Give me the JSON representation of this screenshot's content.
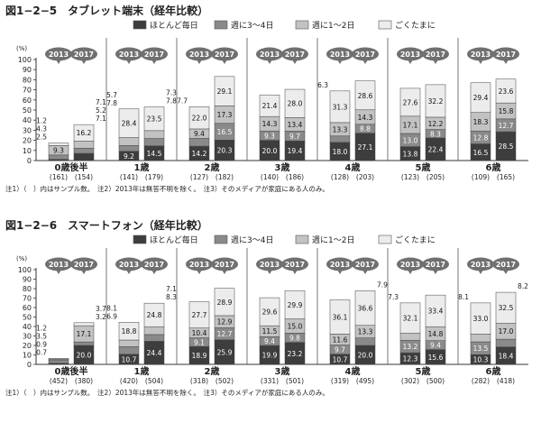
{
  "colors": {
    "s0": "#3d3d3d",
    "s1": "#8a8a8a",
    "s2": "#c2c2c2",
    "s3": "#ececec",
    "bubble": "#707070",
    "bubble_text": "#ffffff",
    "text": "#222222",
    "axis": "#333333"
  },
  "legend": [
    "ほとんど毎日",
    "週に3～4日",
    "週に1～2日",
    "ごくたまに"
  ],
  "years": [
    "2013",
    "2017"
  ],
  "axis_unit": "(%)",
  "chart_data": [
    {
      "type": "bar",
      "stacked": true,
      "title": "図1−2−5　タブレット端末（経年比較）",
      "ylim": [
        0,
        100
      ],
      "yticks": [
        0,
        10,
        20,
        30,
        40,
        50,
        60,
        70,
        80,
        90,
        100
      ],
      "categories": [
        "0歳後半",
        "1歳",
        "2歳",
        "3歳",
        "4歳",
        "5歳",
        "6歳"
      ],
      "samples": [
        [
          "(161)",
          "(154)"
        ],
        [
          "(141)",
          "(179)"
        ],
        [
          "(127)",
          "(182)"
        ],
        [
          "(140)",
          "(186)"
        ],
        [
          "(128)",
          "(203)"
        ],
        [
          "(123)",
          "(205)"
        ],
        [
          "(109)",
          "(165)"
        ]
      ],
      "series": [
        {
          "name": "ほとんど毎日",
          "values": [
            [
              1.2,
              7.1
            ],
            [
              9.2,
              14.5
            ],
            [
              14.2,
              20.3
            ],
            [
              20.0,
              19.4
            ],
            [
              18.0,
              27.1
            ],
            [
              13.8,
              22.4
            ],
            [
              16.5,
              28.5
            ]
          ]
        },
        {
          "name": "週に3～4日",
          "values": [
            [
              4.3,
              5.2
            ],
            [
              5.7,
              7.3
            ],
            [
              7.7,
              16.5
            ],
            [
              9.3,
              9.7
            ],
            [
              6.3,
              8.8
            ],
            [
              13.0,
              8.3
            ],
            [
              12.8,
              12.7
            ]
          ]
        },
        {
          "name": "週に1～2日",
          "values": [
            [
              9.3,
              7.1
            ],
            [
              7.8,
              7.8
            ],
            [
              9.4,
              17.3
            ],
            [
              14.3,
              13.4
            ],
            [
              13.3,
              14.3
            ],
            [
              17.1,
              12.2
            ],
            [
              18.3,
              15.8
            ]
          ]
        },
        {
          "name": "ごくたまに",
          "values": [
            [
              2.5,
              16.2
            ],
            [
              28.4,
              23.5
            ],
            [
              22.0,
              29.1
            ],
            [
              21.4,
              28.0
            ],
            [
              31.3,
              28.6
            ],
            [
              27.6,
              32.2
            ],
            [
              29.4,
              23.6
            ]
          ]
        }
      ],
      "note": "注1）（　）内はサンプル数。　注2）2013年は無答不明を除く。　注3）そのメディアが家庭にある人のみ。"
    },
    {
      "type": "bar",
      "stacked": true,
      "title": "図1−2−6　スマートフォン（経年比較）",
      "ylim": [
        0,
        100
      ],
      "yticks": [
        0,
        10,
        20,
        30,
        40,
        50,
        60,
        70,
        80,
        90,
        100
      ],
      "categories": [
        "0歳後半",
        "1歳",
        "2歳",
        "3歳",
        "4歳",
        "5歳",
        "6歳"
      ],
      "samples": [
        [
          "(452)",
          "(380)"
        ],
        [
          "(420)",
          "(504)"
        ],
        [
          "(318)",
          "(502)"
        ],
        [
          "(331)",
          "(501)"
        ],
        [
          "(319)",
          "(495)"
        ],
        [
          "(302)",
          "(500)"
        ],
        [
          "(282)",
          "(418)"
        ]
      ],
      "series": [
        {
          "name": "ほとんど毎日",
          "values": [
            [
              1.2,
              20.0
            ],
            [
              10.7,
              24.4
            ],
            [
              18.9,
              25.9
            ],
            [
              19.9,
              23.2
            ],
            [
              10.7,
              20.0
            ],
            [
              12.3,
              15.6
            ],
            [
              10.3,
              18.4
            ]
          ]
        },
        {
          "name": "週に3～4日",
          "values": [
            [
              3.5,
              3.7
            ],
            [
              8.1,
              7.1
            ],
            [
              9.1,
              12.7
            ],
            [
              9.4,
              9.8
            ],
            [
              9.7,
              7.9
            ],
            [
              13.2,
              9.4
            ],
            [
              13.5,
              8.2
            ]
          ]
        },
        {
          "name": "週に1～2日",
          "values": [
            [
              0.9,
              17.1
            ],
            [
              6.9,
              8.3
            ],
            [
              10.4,
              12.9
            ],
            [
              11.5,
              15.0
            ],
            [
              11.6,
              13.3
            ],
            [
              7.3,
              14.8
            ],
            [
              8.1,
              17.0
            ]
          ]
        },
        {
          "name": "ごくたまに",
          "values": [
            [
              0.7,
              3.2
            ],
            [
              18.8,
              24.8
            ],
            [
              27.7,
              28.9
            ],
            [
              29.6,
              29.9
            ],
            [
              36.1,
              36.6
            ],
            [
              32.1,
              33.4
            ],
            [
              33.0,
              32.5
            ]
          ]
        }
      ],
      "note": "注1）（　）内はサンプル数。　注2）2013年は無答不明を除く。　注3）そのメディアが家庭にある人のみ。"
    }
  ]
}
